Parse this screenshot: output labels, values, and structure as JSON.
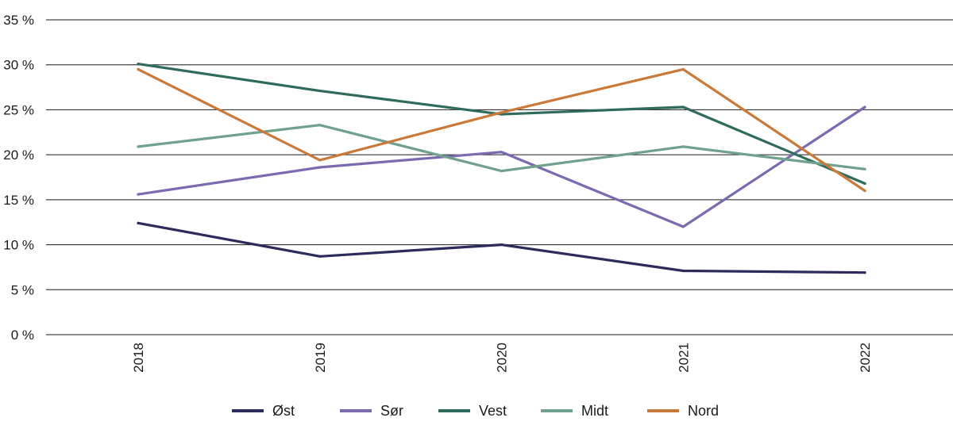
{
  "chart_data": {
    "type": "line",
    "title": "",
    "xlabel": "",
    "ylabel": "",
    "categories": [
      "2018",
      "2019",
      "2020",
      "2021",
      "2022"
    ],
    "ylim": [
      0,
      35
    ],
    "yticks": [
      0,
      5,
      10,
      15,
      20,
      25,
      30,
      35
    ],
    "ytick_labels": [
      "0 %",
      "5 %",
      "10 %",
      "15 %",
      "20 %",
      "25 %",
      "30 %",
      "35 %"
    ],
    "grid": "horizontal",
    "legend_position": "bottom",
    "series": [
      {
        "name": "Øst",
        "color": "#2d2a5c",
        "values": [
          12.4,
          8.7,
          10.0,
          7.1,
          6.9
        ]
      },
      {
        "name": "Sør",
        "color": "#7c6ab0",
        "values": [
          15.6,
          18.6,
          20.3,
          12.0,
          25.3
        ]
      },
      {
        "name": "Vest",
        "color": "#2f6b5c",
        "values": [
          30.1,
          27.1,
          24.5,
          25.3,
          16.8
        ]
      },
      {
        "name": "Midt",
        "color": "#6fa18e",
        "values": [
          20.9,
          23.3,
          18.2,
          20.9,
          18.4
        ]
      },
      {
        "name": "Nord",
        "color": "#c97a3a",
        "values": [
          29.5,
          19.4,
          24.7,
          29.5,
          16.0
        ]
      }
    ]
  }
}
